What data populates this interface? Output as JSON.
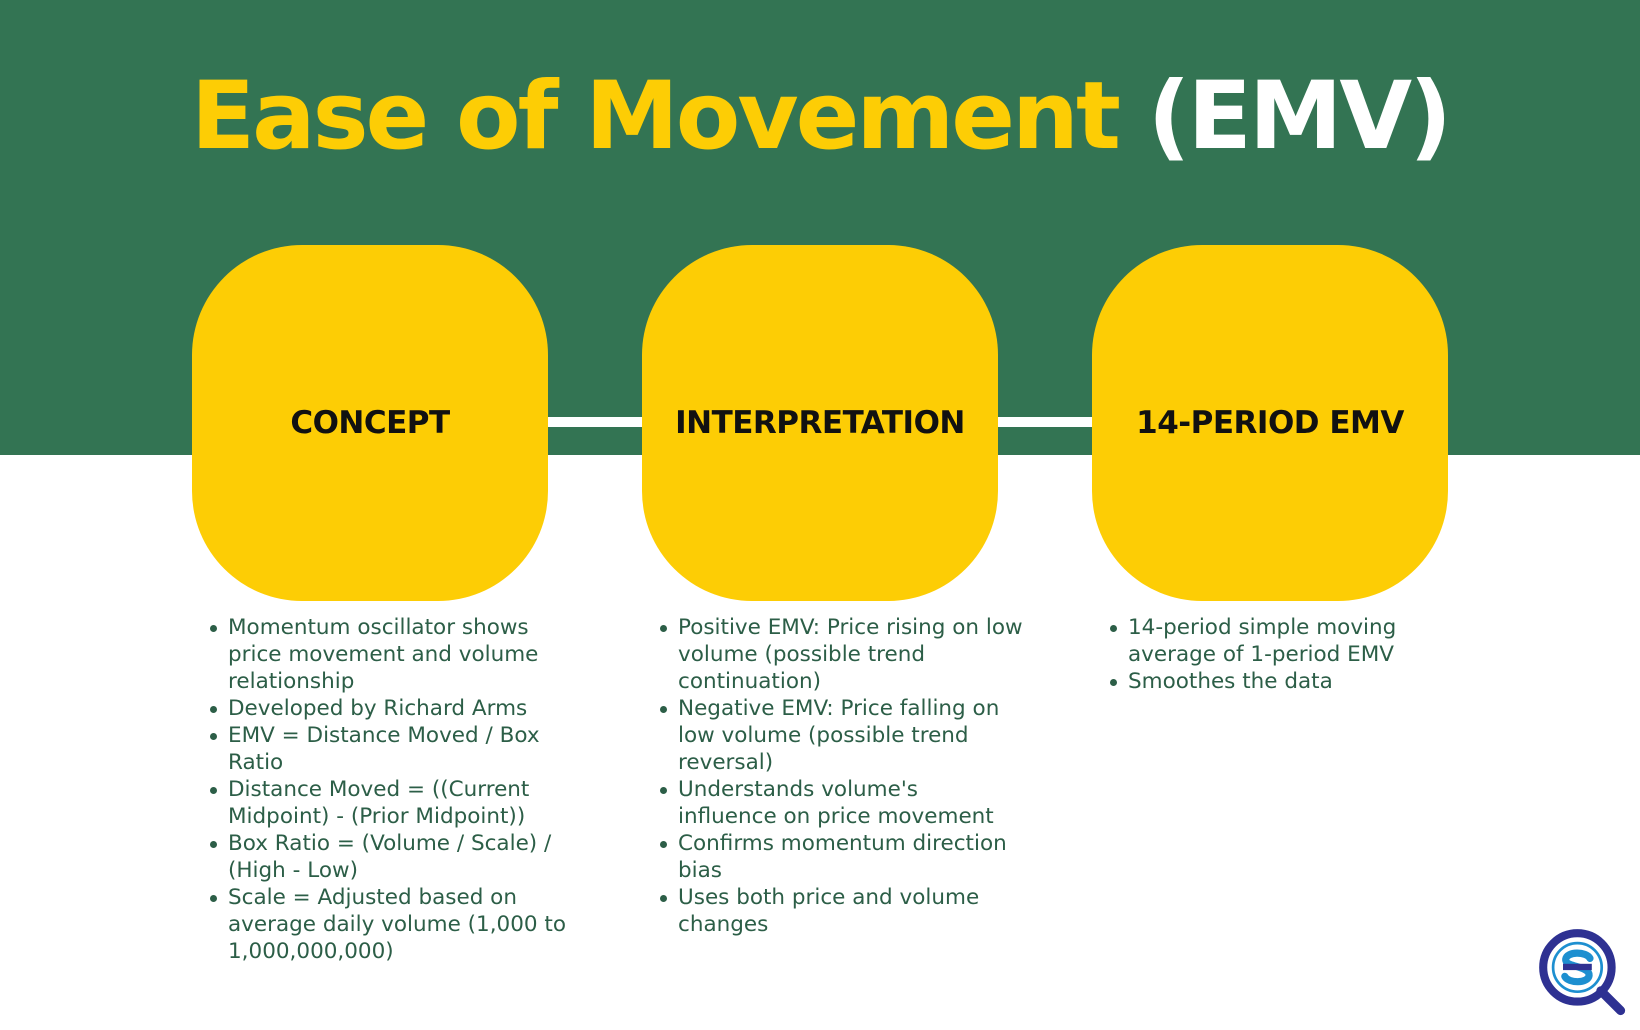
{
  "title": {
    "main": "Ease of Movement",
    "abbr": "(EMV)"
  },
  "colors": {
    "banner": "#337453",
    "accent": "#fdcd05",
    "text": "#2c5e47",
    "logo": "#2e3192"
  },
  "panels": [
    {
      "label": "CONCEPT",
      "bullets": [
        "Momentum oscillator shows price movement and volume relationship",
        "Developed by Richard Arms",
        "EMV = Distance Moved / Box Ratio",
        "Distance Moved = ((Current Midpoint) - (Prior Midpoint))",
        "Box Ratio = (Volume / Scale) / (High - Low)",
        "Scale = Adjusted based on average daily volume (1,000 to 1,000,000,000)"
      ]
    },
    {
      "label": "INTERPRETATION",
      "bullets": [
        "Positive EMV: Price rising on low volume (possible trend continuation)",
        "Negative EMV: Price falling on low volume (possible trend reversal)",
        "Understands volume's influence on price movement",
        "Confirms momentum direction bias",
        "Uses both price and volume changes"
      ]
    },
    {
      "label": "14-PERIOD EMV",
      "bullets": [
        "14-period simple moving average of 1-period EMV",
        "Smoothes the data"
      ]
    }
  ],
  "logo_icon": "brand-logo-icon"
}
